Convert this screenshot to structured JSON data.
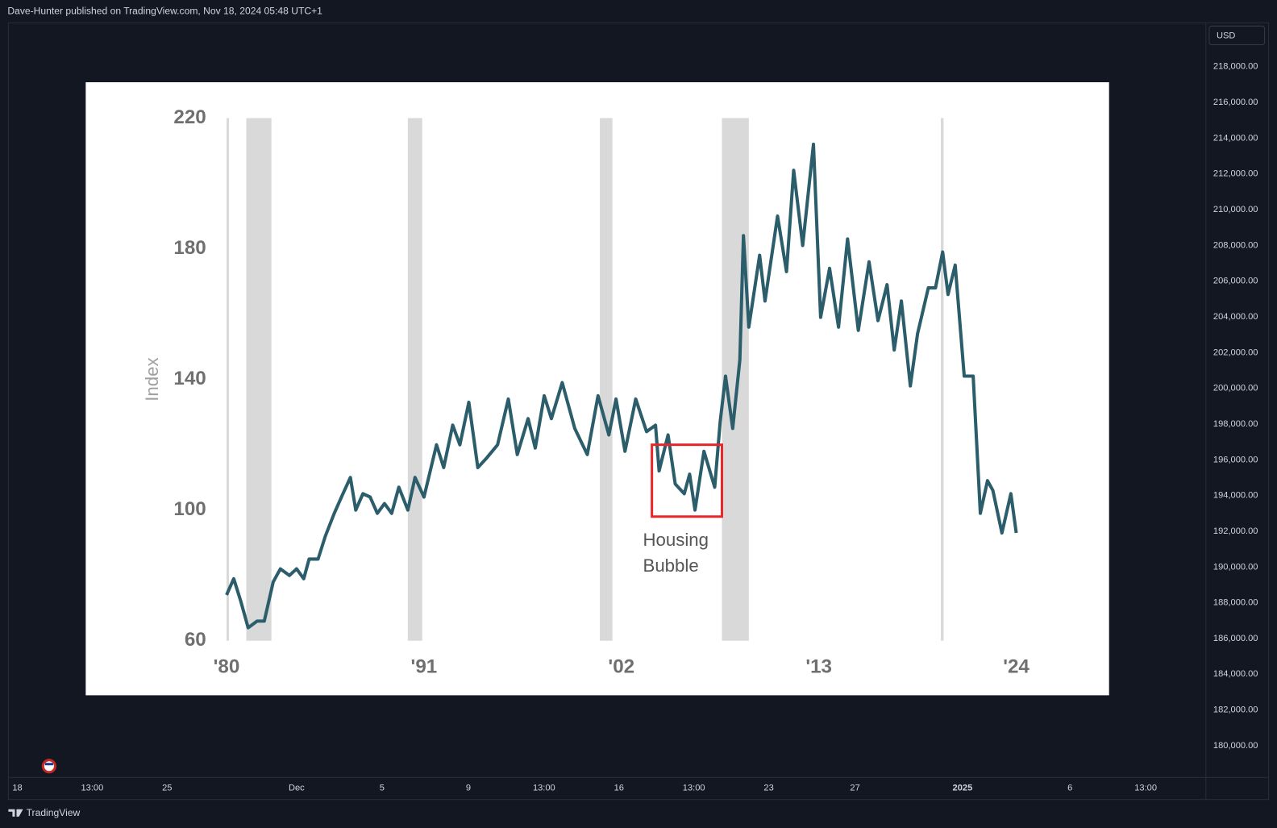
{
  "header": {
    "text": "Dave-Hunter published on TradingView.com, Nov 18, 2024 05:48 UTC+1"
  },
  "price_scale": {
    "currency": "USD",
    "ylim": [
      178220,
      220460
    ],
    "yticks": [
      {
        "value": 218000,
        "label": "218,000.00"
      },
      {
        "value": 216000,
        "label": "216,000.00"
      },
      {
        "value": 214000,
        "label": "214,000.00"
      },
      {
        "value": 212000,
        "label": "212,000.00"
      },
      {
        "value": 210000,
        "label": "210,000.00"
      },
      {
        "value": 208000,
        "label": "208,000.00"
      },
      {
        "value": 206000,
        "label": "206,000.00"
      },
      {
        "value": 204000,
        "label": "204,000.00"
      },
      {
        "value": 202000,
        "label": "202,000.00"
      },
      {
        "value": 200000,
        "label": "200,000.00"
      },
      {
        "value": 198000,
        "label": "198,000.00"
      },
      {
        "value": 196000,
        "label": "196,000.00"
      },
      {
        "value": 194000,
        "label": "194,000.00"
      },
      {
        "value": 192000,
        "label": "192,000.00"
      },
      {
        "value": 190000,
        "label": "190,000.00"
      },
      {
        "value": 188000,
        "label": "188,000.00"
      },
      {
        "value": 186000,
        "label": "186,000.00"
      },
      {
        "value": 184000,
        "label": "184,000.00"
      },
      {
        "value": 182000,
        "label": "182,000.00"
      },
      {
        "value": 180000,
        "label": "180,000.00"
      }
    ]
  },
  "time_scale": {
    "labels": [
      "18",
      "13:00",
      "25",
      "Dec",
      "5",
      "9",
      "13:00",
      "16",
      "13:00",
      "23",
      "27",
      "2025",
      "6",
      "13:00"
    ]
  },
  "footer": {
    "brand": "TradingView"
  },
  "chart_data": {
    "type": "line",
    "y_label": "Index",
    "xlim": [
      1980,
      2024
    ],
    "ylim": [
      60,
      220
    ],
    "xticks": [
      {
        "value": 1980,
        "label": "'80"
      },
      {
        "value": 1991,
        "label": "'91"
      },
      {
        "value": 2002,
        "label": "'02"
      },
      {
        "value": 2013,
        "label": "'13"
      },
      {
        "value": 2024,
        "label": "'24"
      }
    ],
    "yticks": [
      60,
      100,
      140,
      180,
      220
    ],
    "x": [
      1980,
      1980.4,
      1980.8,
      1981.2,
      1981.7,
      1982.1,
      1982.6,
      1983.0,
      1983.5,
      1983.9,
      1984.3,
      1984.6,
      1985.1,
      1985.5,
      1986.0,
      1986.4,
      1986.9,
      1987.2,
      1987.6,
      1988.0,
      1988.4,
      1988.8,
      1989.2,
      1989.6,
      1990.1,
      1990.5,
      1991.0,
      1991.7,
      1992.1,
      1992.6,
      1993.0,
      1993.5,
      1994.0,
      1994.5,
      1995.1,
      1995.7,
      1996.2,
      1996.8,
      1997.2,
      1997.7,
      1998.1,
      1998.7,
      1999.4,
      2000.1,
      2000.7,
      2001.3,
      2001.7,
      2002.2,
      2002.8,
      2003.4,
      2003.9,
      2004.1,
      2004.6,
      2005.0,
      2005.5,
      2005.8,
      2006.1,
      2006.6,
      2007.2,
      2007.5,
      2007.8,
      2008.2,
      2008.6,
      2008.8,
      2009.1,
      2009.7,
      2010.0,
      2010.7,
      2011.2,
      2011.6,
      2012.1,
      2012.7,
      2013.1,
      2013.6,
      2014.1,
      2014.6,
      2015.2,
      2015.8,
      2016.3,
      2016.8,
      2017.2,
      2017.6,
      2018.1,
      2018.5,
      2019.1,
      2019.5,
      2019.9,
      2020.2,
      2020.6,
      2021.1,
      2021.6,
      2022.0,
      2022.4,
      2022.7,
      2023.2,
      2023.7,
      2024.0
    ],
    "values": [
      74,
      79,
      72,
      64,
      66,
      66,
      78,
      82,
      80,
      82,
      79,
      85,
      85,
      92,
      99,
      104,
      110,
      100,
      105,
      104,
      99,
      102,
      99,
      107,
      100,
      110,
      104,
      120,
      113,
      126,
      120,
      133,
      113,
      116,
      120,
      134,
      117,
      128,
      119,
      135,
      128,
      139,
      125,
      117,
      135,
      123,
      134,
      118,
      134,
      124,
      126,
      112,
      123,
      108,
      105,
      111,
      100,
      118,
      107,
      127,
      141,
      125,
      146,
      184,
      156,
      178,
      164,
      190,
      173,
      204,
      181,
      212,
      159,
      174,
      156,
      183,
      155,
      176,
      158,
      169,
      149,
      164,
      138,
      154,
      168,
      168,
      179,
      166,
      175,
      141,
      141,
      99,
      109,
      106,
      93,
      105,
      93
    ],
    "color": "#2b5d6b",
    "shading": [
      [
        1980,
        1980.1
      ],
      [
        1981.1,
        1982.5
      ],
      [
        1990.1,
        1990.9
      ],
      [
        2000.8,
        2001.5
      ],
      [
        2007.6,
        2009.1
      ],
      [
        2019.8,
        2019.95
      ]
    ],
    "shading_color": "#d9d9d9",
    "annotation": {
      "text": [
        "Housing",
        "Bubble"
      ],
      "box": {
        "x": [
          2003.7,
          2007.6
        ],
        "y": [
          98,
          120
        ]
      },
      "color": "#e8272a"
    }
  }
}
